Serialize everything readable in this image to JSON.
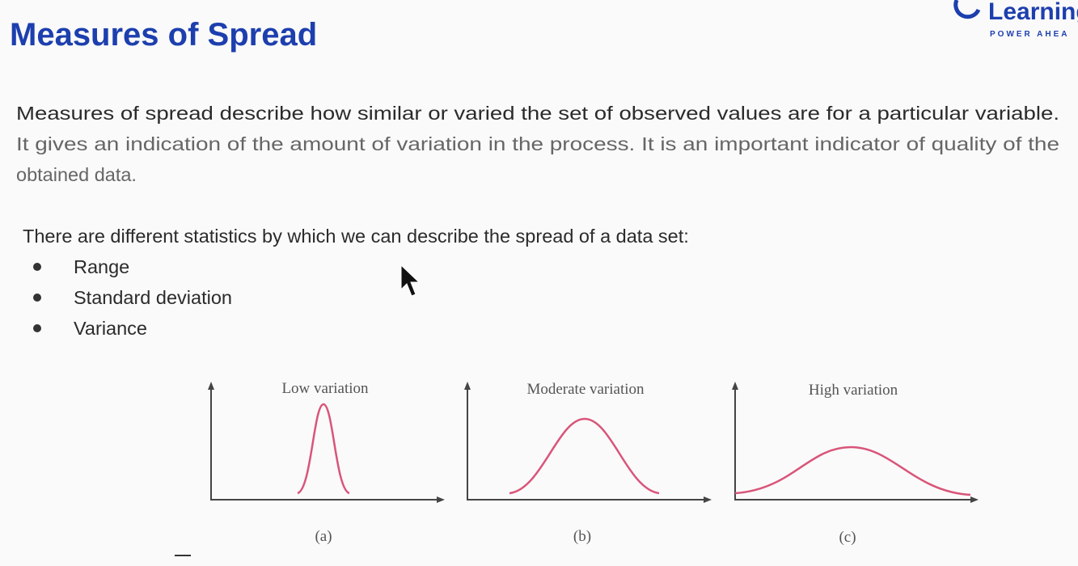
{
  "header": {
    "title": "Measures of Spread",
    "logo": {
      "name": "Learning",
      "tagline": "POWER AHEA"
    }
  },
  "description": {
    "lines": [
      "Measures of spread describe how similar or varied the set of observed values are for a particular variable.",
      "It gives an indication of the amount of variation in the process. It is an important indicator of quality of the",
      "obtained data."
    ]
  },
  "statistics": {
    "intro": "There are different statistics by which we can describe the spread of a data set:",
    "items": [
      "Range",
      "Standard deviation",
      "Variance"
    ]
  },
  "figure": {
    "panels": [
      {
        "title": "Low variation",
        "caption": "(a)"
      },
      {
        "title": "Moderate variation",
        "caption": "(b)"
      },
      {
        "title": "High variation",
        "caption": "(c)"
      }
    ]
  }
}
